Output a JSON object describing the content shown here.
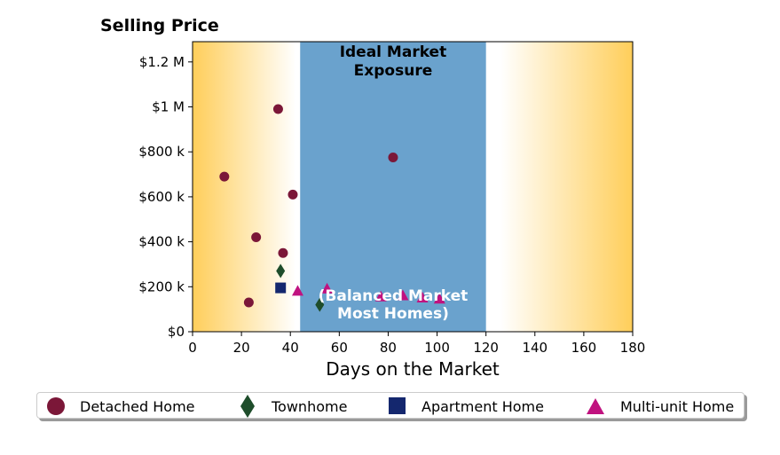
{
  "chart_data": {
    "type": "scatter",
    "title": "Selling Price",
    "xlabel": "Days on the Market",
    "ylabel": "",
    "xlim": [
      0,
      180
    ],
    "ylim": [
      0,
      1290000
    ],
    "xticks": [
      0,
      20,
      40,
      60,
      80,
      100,
      120,
      140,
      160,
      180
    ],
    "yticks": [
      {
        "value": 0,
        "label": "$0"
      },
      {
        "value": 200000,
        "label": "$200 k"
      },
      {
        "value": 400000,
        "label": "$400 k"
      },
      {
        "value": 600000,
        "label": "$600 k"
      },
      {
        "value": 800000,
        "label": "$800 k"
      },
      {
        "value": 1000000,
        "label": "$1 M"
      },
      {
        "value": 1200000,
        "label": "$1.2 M"
      }
    ],
    "grid": false,
    "legend_position": "bottom",
    "region": {
      "x_start": 44,
      "x_end": 120,
      "color": "#6aa2cd",
      "label_top": [
        "Ideal Market",
        "Exposure"
      ],
      "label_bottom": [
        "(Balanced Market",
        "Most Homes)"
      ]
    },
    "background_gradient": {
      "edge": "#ffce5a",
      "center": "#ffffff"
    },
    "series": [
      {
        "name": "Detached Home",
        "marker": "circle",
        "color": "#7b1738",
        "points": [
          [
            13,
            690000
          ],
          [
            23,
            130000
          ],
          [
            26,
            420000
          ],
          [
            35,
            990000
          ],
          [
            37,
            350000
          ],
          [
            41,
            610000
          ],
          [
            82,
            775000
          ]
        ]
      },
      {
        "name": "Townhome",
        "marker": "diamond",
        "color": "#1e4d2b",
        "points": [
          [
            36,
            270000
          ],
          [
            52,
            120000
          ]
        ]
      },
      {
        "name": "Apartment Home",
        "marker": "square",
        "color": "#14276e",
        "points": [
          [
            36,
            195000
          ]
        ]
      },
      {
        "name": "Multi-unit Home",
        "marker": "triangle",
        "color": "#c0127f",
        "points": [
          [
            43,
            180000
          ],
          [
            55,
            190000
          ],
          [
            77,
            155000
          ],
          [
            86,
            160000
          ],
          [
            94,
            150000
          ],
          [
            101,
            145000
          ]
        ]
      }
    ]
  }
}
